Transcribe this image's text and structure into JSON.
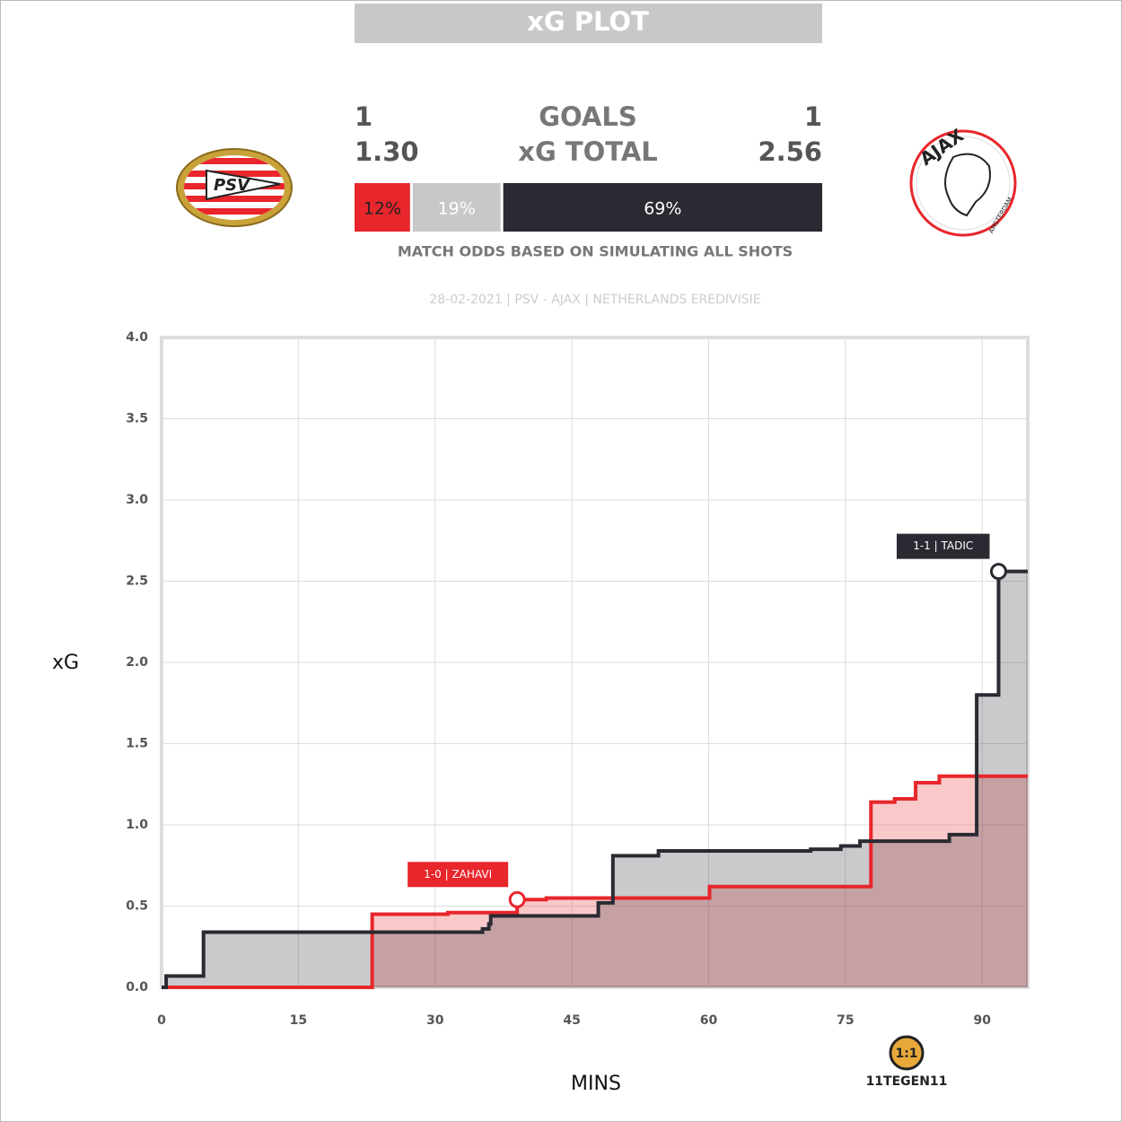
{
  "header": {
    "title": "xG PLOT"
  },
  "match": {
    "home": {
      "goals": 1,
      "xg": "1.30",
      "logo_text": "PSV"
    },
    "away": {
      "goals": 1,
      "xg": "2.56",
      "logo_text": "AJAX",
      "logo_subtext": "AMSTERDAM"
    },
    "goals_label": "GOALS",
    "xg_label": "xG TOTAL",
    "odds": {
      "values": [
        12,
        19,
        69
      ],
      "value_labels": [
        "12%",
        "19%",
        "69%"
      ],
      "colors": [
        "#e8262b",
        "#c8c8c8",
        "#2a2a32"
      ]
    },
    "odds_caption": "MATCH ODDS BASED ON SIMULATING ALL SHOTS",
    "info": "28-02-2021 | PSV - AJAX | NETHERLANDS EREDIVISIE",
    "brand": "11TEGEN11"
  },
  "chart_data": {
    "type": "step",
    "xlabel": "MINS",
    "ylabel": "xG",
    "xlim": [
      0,
      95
    ],
    "ylim": [
      0,
      4
    ],
    "xticks": [
      0,
      15,
      30,
      45,
      60,
      75,
      90
    ],
    "yticks": [
      {
        "value": 0,
        "label": "0.0"
      },
      {
        "value": 0.5,
        "label": "0.5"
      },
      {
        "value": 1,
        "label": "1.0"
      },
      {
        "value": 1.5,
        "label": "1.5"
      },
      {
        "value": 2,
        "label": "2.0"
      },
      {
        "value": 2.5,
        "label": "2.5"
      },
      {
        "value": 3,
        "label": "3.0"
      },
      {
        "value": 3.5,
        "label": "3.5"
      },
      {
        "value": 4,
        "label": "4.0"
      }
    ],
    "grid": true,
    "series": [
      {
        "name": "PSV",
        "color": "#e8262b",
        "x": [
          0,
          23.1,
          31.4,
          39.0,
          42.2,
          60.1,
          77.8,
          80.4,
          82.7,
          85.3,
          95
        ],
        "values": [
          0,
          0.45,
          0.46,
          0.54,
          0.55,
          0.62,
          1.14,
          1.16,
          1.26,
          1.3,
          1.3
        ]
      },
      {
        "name": "AJAX",
        "color": "#2a2a32",
        "x": [
          0,
          0.5,
          4.6,
          35.2,
          35.9,
          36.1,
          47.9,
          49.5,
          54.5,
          71.2,
          74.5,
          76.6,
          86.4,
          89.4,
          91.8,
          95
        ],
        "values": [
          0,
          0.07,
          0.34,
          0.36,
          0.39,
          0.44,
          0.52,
          0.81,
          0.84,
          0.85,
          0.87,
          0.9,
          0.94,
          1.8,
          2.56,
          2.56
        ]
      }
    ],
    "annotations": [
      {
        "text": "1-0 | ZAHAVI",
        "x": 39.0,
        "y": 0.54,
        "series": 0
      },
      {
        "text": "1-1 | TADIC",
        "x": 91.8,
        "y": 2.56,
        "series": 1
      }
    ]
  }
}
